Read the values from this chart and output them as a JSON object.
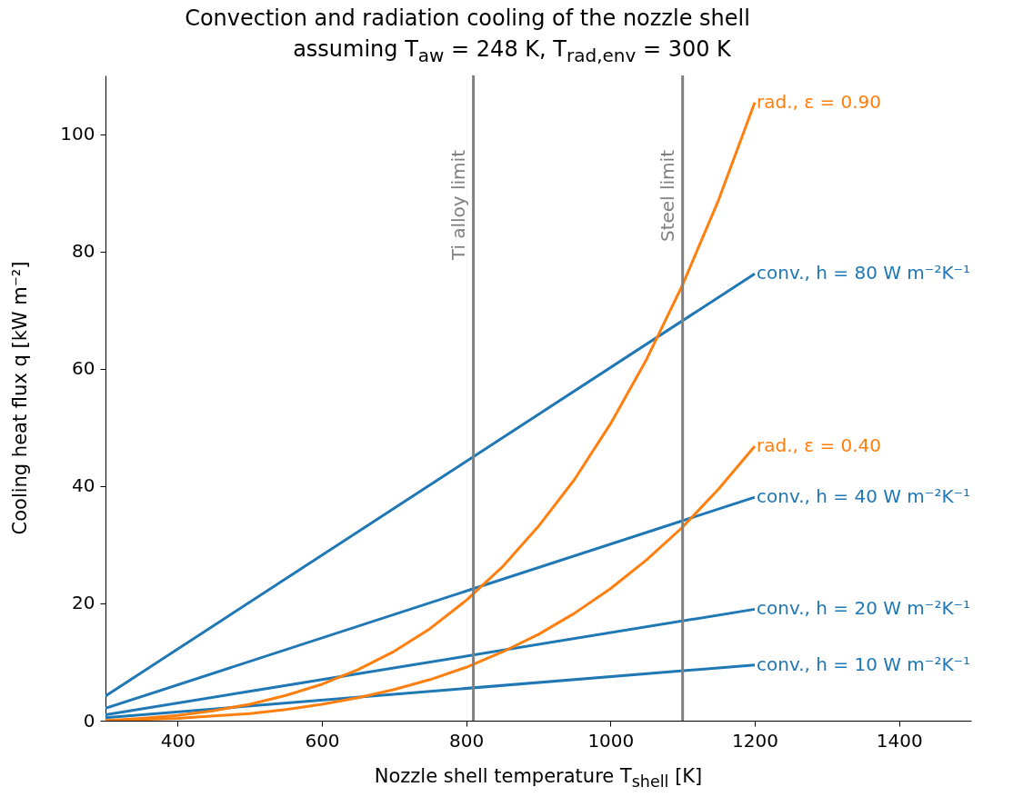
{
  "chart_data": {
    "type": "line",
    "title": "Convection and radiation cooling of the nozzle shell",
    "subtitle": "assuming T$_{aw}$ = 248 K, T$_{rad,env}$ = 300 K",
    "xlabel": "Nozzle shell temperature T$_{shell}$ [K]",
    "ylabel": "Cooling heat flux q [kW m⁻²]",
    "xlim": [
      300,
      1500
    ],
    "xticks": [
      400,
      600,
      800,
      1000,
      1200,
      1400
    ],
    "ylim": [
      0,
      110
    ],
    "yticks": [
      0,
      20,
      40,
      60,
      80,
      100
    ],
    "grid": false,
    "legend": false,
    "line_style": "solid",
    "marker": "none",
    "series": [
      {
        "name": "conv., h = 80 W m⁻²K⁻¹",
        "color": "#1f77b4",
        "x": [
          300,
          1200
        ],
        "values": [
          4.2,
          76.2
        ]
      },
      {
        "name": "conv., h = 40 W m⁻²K⁻¹",
        "color": "#1f77b4",
        "x": [
          300,
          1200
        ],
        "values": [
          2.1,
          38.1
        ]
      },
      {
        "name": "conv., h = 20 W m⁻²K⁻¹",
        "color": "#1f77b4",
        "x": [
          300,
          1200
        ],
        "values": [
          1.0,
          19.0
        ]
      },
      {
        "name": "conv., h = 10 W m⁻²K⁻¹",
        "color": "#1f77b4",
        "x": [
          300,
          1200
        ],
        "values": [
          0.5,
          9.5
        ]
      },
      {
        "name": "rad., ε = 0.90",
        "color": "#ff7f0e",
        "x": [
          300,
          350,
          400,
          450,
          500,
          550,
          600,
          650,
          700,
          750,
          800,
          850,
          900,
          950,
          1000,
          1050,
          1100,
          1150,
          1200
        ],
        "values": [
          0,
          0.4,
          0.9,
          1.7,
          2.8,
          4.3,
          6.2,
          8.7,
          11.8,
          15.7,
          20.5,
          26.2,
          33.1,
          41.1,
          50.6,
          61.6,
          74.3,
          88.8,
          105.4
        ]
      },
      {
        "name": "rad., ε = 0.40",
        "color": "#ff7f0e",
        "x": [
          300,
          350,
          400,
          450,
          500,
          550,
          600,
          650,
          700,
          750,
          800,
          850,
          900,
          950,
          1000,
          1050,
          1100,
          1150,
          1200
        ],
        "values": [
          0,
          0.2,
          0.4,
          0.8,
          1.2,
          1.9,
          2.8,
          3.9,
          5.3,
          7.0,
          9.1,
          11.7,
          14.7,
          18.3,
          22.5,
          27.4,
          33.0,
          39.5,
          46.8
        ]
      }
    ],
    "ref_lines": [
      {
        "axis": "x",
        "value": 810,
        "label": "Ti alloy limit",
        "color": "#808080"
      },
      {
        "axis": "x",
        "value": 1100,
        "label": "Steel limit",
        "color": "#808080"
      }
    ]
  }
}
